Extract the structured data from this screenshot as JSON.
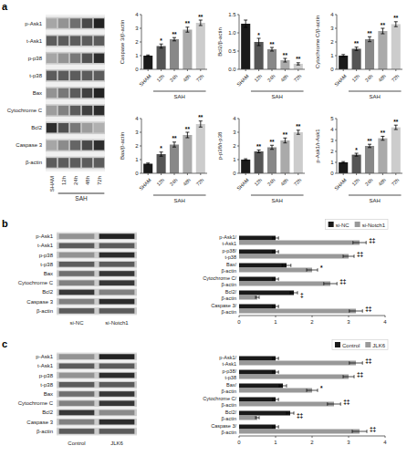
{
  "chart_data": [
    {
      "type": "heatmap",
      "title": "a",
      "xlabel": "SAH",
      "categories": [
        "SHAM",
        "12h",
        "24h",
        "48h",
        "72h"
      ],
      "series": [
        {
          "name": "p-Ask1",
          "values": [
            0.2,
            0.3,
            0.5,
            0.7,
            0.9
          ]
        },
        {
          "name": "t-Ask1",
          "values": [
            0.6,
            0.6,
            0.6,
            0.6,
            0.6
          ]
        },
        {
          "name": "p-p38",
          "values": [
            0.2,
            0.3,
            0.45,
            0.65,
            0.85
          ]
        },
        {
          "name": "t-p38",
          "values": [
            0.6,
            0.6,
            0.6,
            0.6,
            0.6
          ]
        },
        {
          "name": "Bax",
          "values": [
            0.3,
            0.45,
            0.6,
            0.75,
            0.9
          ]
        },
        {
          "name": "Cytochrome C",
          "values": [
            0.25,
            0.4,
            0.6,
            0.75,
            0.85
          ]
        },
        {
          "name": "Bcl2",
          "values": [
            0.85,
            0.65,
            0.45,
            0.25,
            0.15
          ]
        },
        {
          "name": "Caspase 3",
          "values": [
            0.2,
            0.35,
            0.55,
            0.7,
            0.85
          ]
        },
        {
          "name": "β-actin",
          "values": [
            0.6,
            0.6,
            0.6,
            0.6,
            0.6
          ]
        }
      ]
    },
    {
      "type": "bar",
      "ylabel": "Caspase 3/β-actin",
      "xlabel": "SAH",
      "categories": [
        "SHAM",
        "12h",
        "24h",
        "48h",
        "72h"
      ],
      "values": [
        1.0,
        1.7,
        2.2,
        2.9,
        3.4
      ],
      "errors": [
        0.05,
        0.15,
        0.12,
        0.18,
        0.2
      ],
      "annotations": [
        null,
        "*",
        "**",
        "**",
        "**"
      ],
      "colors": [
        "#1a1a1a",
        "#555555",
        "#888888",
        "#aaaaaa",
        "#cccccc"
      ],
      "ylim": [
        0,
        4
      ],
      "yticks": [
        0,
        1,
        2,
        3,
        4
      ]
    },
    {
      "type": "bar",
      "ylabel": "Bcl2/β-actin",
      "xlabel": "SAH",
      "categories": [
        "SHAM",
        "12h",
        "24h",
        "48h",
        "72h"
      ],
      "values": [
        1.25,
        0.75,
        0.55,
        0.25,
        0.15
      ],
      "errors": [
        0.1,
        0.1,
        0.05,
        0.05,
        0.03
      ],
      "annotations": [
        null,
        "*",
        "**",
        "**",
        "**"
      ],
      "colors": [
        "#1a1a1a",
        "#555555",
        "#888888",
        "#aaaaaa",
        "#cccccc"
      ],
      "ylim": [
        0.0,
        1.5
      ],
      "yticks": [
        {
          "value": 0.0,
          "label": "0.0"
        },
        0.5,
        {
          "value": 1.0,
          "label": "1.0"
        },
        1.5
      ]
    },
    {
      "type": "bar",
      "ylabel": "Cytochrome C/β-actin",
      "xlabel": "SAH",
      "categories": [
        "SHAM",
        "12h",
        "24h",
        "48h",
        "72h"
      ],
      "values": [
        1.0,
        1.5,
        2.2,
        2.8,
        3.3
      ],
      "errors": [
        0.08,
        0.12,
        0.18,
        0.2,
        0.18
      ],
      "annotations": [
        null,
        "**",
        "**",
        "**",
        "**"
      ],
      "colors": [
        "#1a1a1a",
        "#555555",
        "#888888",
        "#aaaaaa",
        "#cccccc"
      ],
      "ylim": [
        0,
        4
      ],
      "yticks": [
        0,
        1,
        2,
        3,
        4
      ]
    },
    {
      "type": "bar",
      "ylabel": "Bax/β-actin",
      "xlabel": "SAH",
      "categories": [
        "SHAM",
        "12h",
        "24h",
        "48h",
        "72h"
      ],
      "values": [
        0.7,
        1.4,
        2.1,
        2.8,
        3.6
      ],
      "errors": [
        0.05,
        0.15,
        0.18,
        0.2,
        0.22
      ],
      "annotations": [
        null,
        "*",
        "**",
        "**",
        "**"
      ],
      "colors": [
        "#1a1a1a",
        "#555555",
        "#888888",
        "#aaaaaa",
        "#cccccc"
      ],
      "ylim": [
        0,
        4
      ],
      "yticks": [
        0,
        1,
        2,
        3,
        4
      ]
    },
    {
      "type": "bar",
      "ylabel": "p-p38/t-p38",
      "xlabel": "SAH",
      "categories": [
        "SHAM",
        "12h",
        "24h",
        "48h",
        "72h"
      ],
      "values": [
        1.0,
        1.6,
        1.9,
        2.4,
        3.0
      ],
      "errors": [
        0.06,
        0.1,
        0.15,
        0.18,
        0.15
      ],
      "annotations": [
        null,
        "**",
        "**",
        "**",
        "**"
      ],
      "colors": [
        "#1a1a1a",
        "#555555",
        "#888888",
        "#aaaaaa",
        "#cccccc"
      ],
      "ylim": [
        0,
        4
      ],
      "yticks": [
        0,
        1,
        2,
        3,
        4
      ]
    },
    {
      "type": "bar",
      "ylabel": "p-Ask1/t-Ask1",
      "xlabel": "SAH",
      "categories": [
        "SHAM",
        "12h",
        "24h",
        "48h",
        "72h"
      ],
      "values": [
        1.0,
        1.7,
        2.5,
        3.2,
        4.2
      ],
      "errors": [
        0.07,
        0.13,
        0.15,
        0.18,
        0.2
      ],
      "annotations": [
        null,
        "*",
        "**",
        "**",
        "**"
      ],
      "colors": [
        "#1a1a1a",
        "#555555",
        "#888888",
        "#aaaaaa",
        "#cccccc"
      ],
      "ylim": [
        0,
        5
      ],
      "yticks": [
        0,
        1,
        2,
        3,
        4,
        5
      ]
    },
    {
      "type": "heatmap",
      "title": "b",
      "categories": [
        "si-NC",
        "si-Notch1"
      ],
      "series": [
        {
          "name": "p-Ask1",
          "values": [
            0.3,
            0.9
          ]
        },
        {
          "name": "t-Ask1",
          "values": [
            0.6,
            0.6
          ]
        },
        {
          "name": "p-p38",
          "values": [
            0.3,
            0.85
          ]
        },
        {
          "name": "t-p38",
          "values": [
            0.6,
            0.6
          ]
        },
        {
          "name": "Bax",
          "values": [
            0.5,
            0.8
          ]
        },
        {
          "name": "Cytochrome C",
          "values": [
            0.4,
            0.8
          ]
        },
        {
          "name": "Bcl2",
          "values": [
            0.8,
            0.4
          ]
        },
        {
          "name": "Caspase 3",
          "values": [
            0.4,
            0.85
          ]
        },
        {
          "name": "β-actin",
          "values": [
            0.6,
            0.6
          ]
        }
      ]
    },
    {
      "type": "bar",
      "orientation": "horizontal",
      "legend": "upper right",
      "categories": [
        "p-Ask1/\nt-Ask1",
        "p-p38/\nt-p38",
        "Bax/\nβ-actin",
        "Cytochrome C/\nβ-actin",
        "Bcl2/\nβ-actin",
        "Caspase 3/\nβ-actin"
      ],
      "series": [
        {
          "name": "si-NC",
          "color": "#1a1a1a",
          "values": [
            1.0,
            1.0,
            1.3,
            1.0,
            1.5,
            1.0
          ],
          "errors": [
            0.08,
            0.08,
            0.12,
            0.08,
            0.1,
            0.08
          ]
        },
        {
          "name": "si-Notch1",
          "color": "#999999",
          "values": [
            3.3,
            3.0,
            2.0,
            2.5,
            0.5,
            3.2
          ],
          "errors": [
            0.18,
            0.15,
            0.15,
            0.18,
            0.05,
            0.18
          ]
        }
      ],
      "annotations": [
        "‡‡",
        "‡‡",
        "*",
        "‡‡",
        "‡",
        "‡‡"
      ],
      "xlim": [
        0,
        4
      ],
      "xticks": [
        0,
        1,
        2,
        3,
        4
      ]
    },
    {
      "type": "heatmap",
      "title": "c",
      "categories": [
        "Control",
        "JLK6"
      ],
      "series": [
        {
          "name": "p-Ask1",
          "values": [
            0.3,
            0.9
          ]
        },
        {
          "name": "t-Ask1",
          "values": [
            0.6,
            0.6
          ]
        },
        {
          "name": "p-p38",
          "values": [
            0.3,
            0.85
          ]
        },
        {
          "name": "t-p38",
          "values": [
            0.6,
            0.6
          ]
        },
        {
          "name": "Bax",
          "values": [
            0.5,
            0.8
          ]
        },
        {
          "name": "Cytochrome C",
          "values": [
            0.4,
            0.8
          ]
        },
        {
          "name": "Bcl2",
          "values": [
            0.8,
            0.35
          ]
        },
        {
          "name": "Caspase 3",
          "values": [
            0.4,
            0.85
          ]
        },
        {
          "name": "β-actin",
          "values": [
            0.6,
            0.6
          ]
        }
      ]
    },
    {
      "type": "bar",
      "orientation": "horizontal",
      "legend": "upper right",
      "categories": [
        "p-Ask1/\nt-Ask1",
        "p-p38/\nt-p38",
        "Bax/\nβ-actin",
        "Cytochrome C/\nβ-actin",
        "Bcl2/\nβ-actin",
        "Caspase 3/\nβ-actin"
      ],
      "series": [
        {
          "name": "Control",
          "color": "#1a1a1a",
          "values": [
            1.0,
            1.0,
            1.2,
            1.0,
            1.4,
            1.0
          ],
          "errors": [
            0.08,
            0.08,
            0.1,
            0.08,
            0.1,
            0.08
          ]
        },
        {
          "name": "JLK6",
          "color": "#999999",
          "values": [
            3.2,
            3.0,
            2.0,
            2.6,
            0.5,
            3.3
          ],
          "errors": [
            0.18,
            0.15,
            0.15,
            0.18,
            0.05,
            0.2
          ]
        }
      ],
      "annotations": [
        "‡‡",
        "‡‡",
        "*",
        "‡‡",
        "‡‡",
        "‡‡"
      ],
      "xlim": [
        0,
        4
      ],
      "xticks": [
        0,
        1,
        2,
        3,
        4
      ]
    }
  ]
}
